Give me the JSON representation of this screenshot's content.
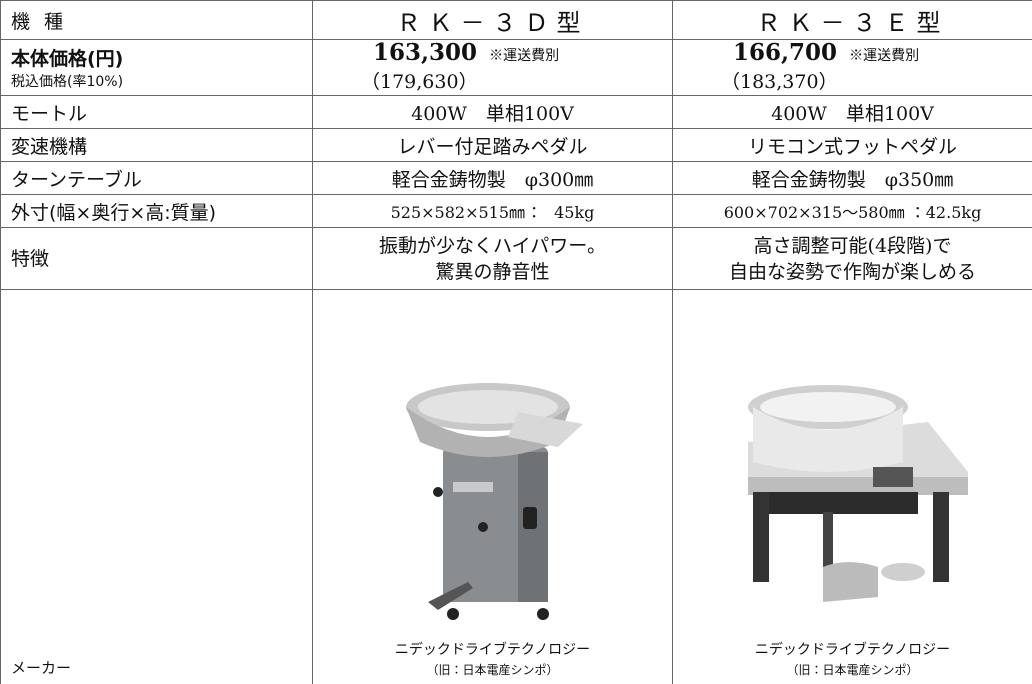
{
  "table": {
    "header": [
      "機 種",
      "ＲＫ－３Ｄ型",
      "ＲＫ－３Ｅ型"
    ],
    "price": {
      "label": "本体価格(円)",
      "sublabel": "税込価格(率10%)",
      "models": [
        {
          "price": "163,300",
          "note": "※運送費別",
          "tax_included": "（179,630）"
        },
        {
          "price": "166,700",
          "note": "※運送費別",
          "tax_included": "（183,370）"
        }
      ]
    },
    "rows": [
      {
        "label": "モートル",
        "values": [
          "400W　単相100V",
          "400W　単相100V"
        ]
      },
      {
        "label": "変速機構",
        "values": [
          "レバー付足踏みペダル",
          "リモコン式フットペダル"
        ]
      },
      {
        "label": "ターンテーブル",
        "values": [
          "軽合金鋳物製　φ300㎜",
          "軽合金鋳物製　φ350㎜"
        ]
      },
      {
        "label": "外寸(幅×奥行×高:質量)",
        "values": [
          "525×582×515㎜ ：　45kg",
          "600×702×315～580㎜ ：42.5kg"
        ]
      },
      {
        "label": "特徴",
        "values": [
          [
            "振動が少なくハイパワー。",
            "驚異の静音性"
          ],
          [
            "高さ調整可能(4段階)で",
            "自由な姿勢で作陶が楽しめる"
          ]
        ]
      }
    ],
    "maker": {
      "label": "メーカー",
      "values": [
        [
          "ニデックドライブテクノロジー",
          "（旧：日本電産シンポ）"
        ],
        [
          "ニデックドライブテクノロジー",
          "（旧：日本電産シンポ）"
        ]
      ]
    }
  }
}
